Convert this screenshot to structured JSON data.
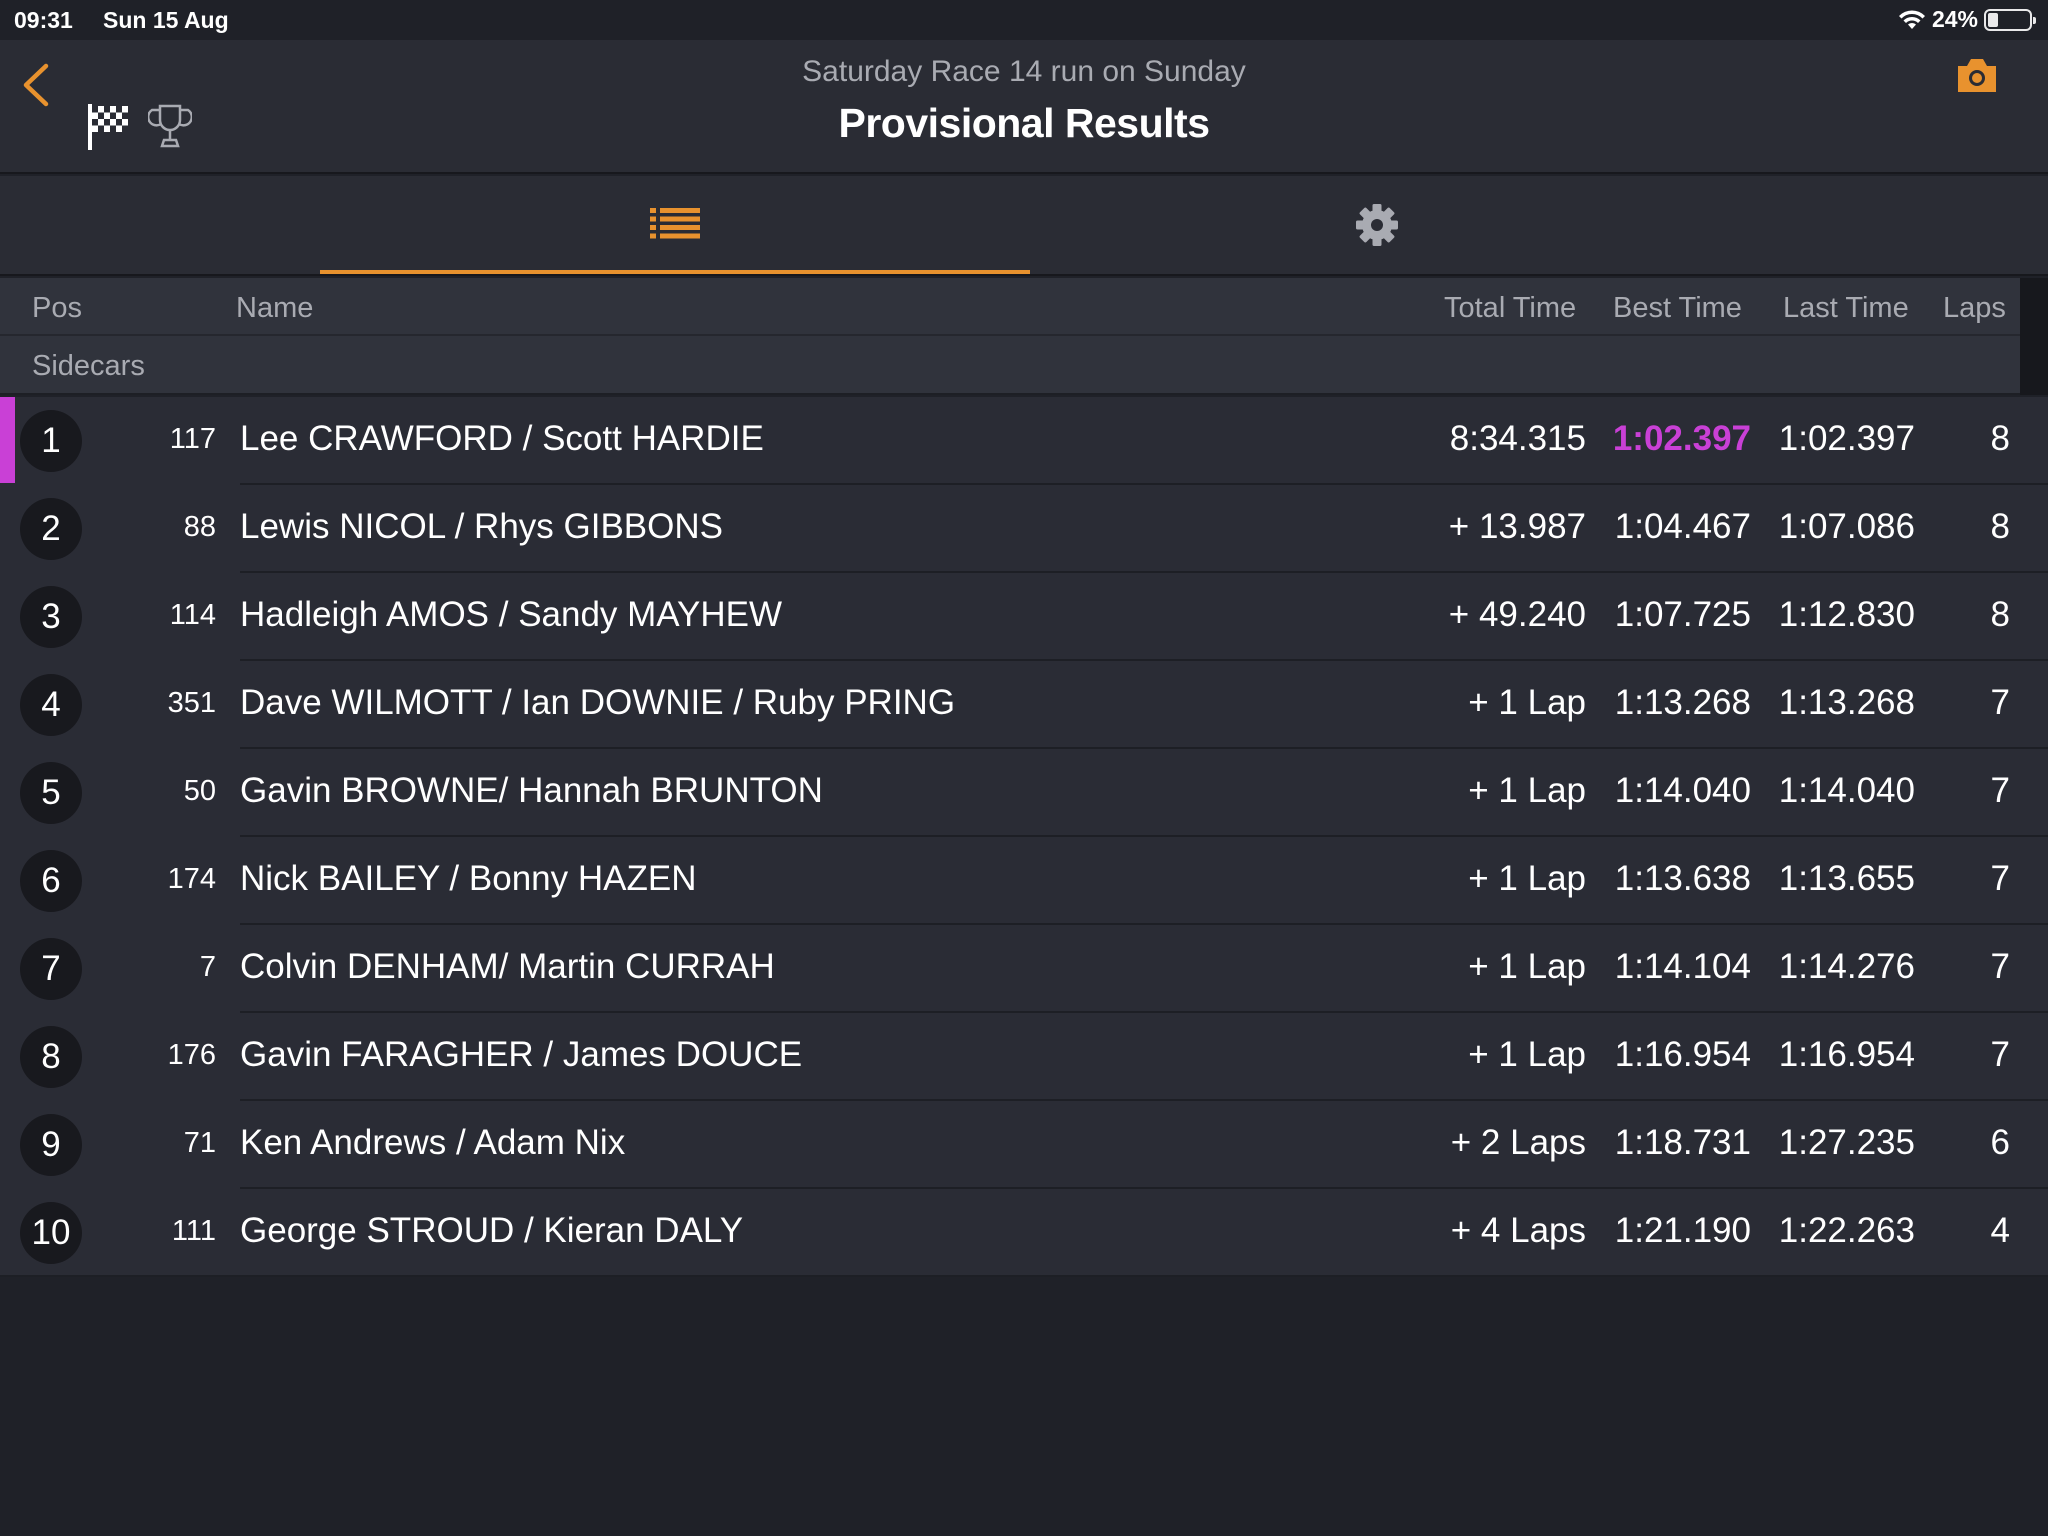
{
  "status_bar": {
    "time": "09:31",
    "date": "Sun 15 Aug",
    "battery": "24%"
  },
  "nav": {
    "subtitle": "Saturday Race 14 run on Sunday",
    "title": "Provisional Results",
    "icons": [
      "back-chevron-icon",
      "checkered-flag-icon",
      "trophy-icon",
      "camera-icon"
    ]
  },
  "tabs": [
    {
      "icon": "list-icon",
      "selected": true
    },
    {
      "icon": "gear-icon",
      "selected": false
    }
  ],
  "columns": {
    "pos": "Pos",
    "name": "Name",
    "total": "Total Time",
    "best": "Best Time",
    "last": "Last Time",
    "laps": "Laps"
  },
  "group": "Sidecars",
  "colors": {
    "accent": "#e8922e",
    "fastest": "#c940d6"
  },
  "results": [
    {
      "pos": "1",
      "number": "117",
      "name": "Lee CRAWFORD / Scott HARDIE",
      "total": "8:34.315",
      "best": "1:02.397",
      "last": "1:02.397",
      "laps": "8",
      "fastest": true
    },
    {
      "pos": "2",
      "number": "88",
      "name": "Lewis NICOL / Rhys GIBBONS",
      "total": "+ 13.987",
      "best": "1:04.467",
      "last": "1:07.086",
      "laps": "8"
    },
    {
      "pos": "3",
      "number": "114",
      "name": "Hadleigh AMOS / Sandy MAYHEW",
      "total": "+ 49.240",
      "best": "1:07.725",
      "last": "1:12.830",
      "laps": "8"
    },
    {
      "pos": "4",
      "number": "351",
      "name": "Dave WILMOTT / Ian DOWNIE / Ruby PRING",
      "total": "+ 1 Lap",
      "best": "1:13.268",
      "last": "1:13.268",
      "laps": "7"
    },
    {
      "pos": "5",
      "number": "50",
      "name": "Gavin BROWNE/ Hannah BRUNTON",
      "total": "+ 1 Lap",
      "best": "1:14.040",
      "last": "1:14.040",
      "laps": "7"
    },
    {
      "pos": "6",
      "number": "174",
      "name": "Nick BAILEY / Bonny HAZEN",
      "total": "+ 1 Lap",
      "best": "1:13.638",
      "last": "1:13.655",
      "laps": "7"
    },
    {
      "pos": "7",
      "number": "7",
      "name": "Colvin DENHAM/ Martin CURRAH",
      "total": "+ 1 Lap",
      "best": "1:14.104",
      "last": "1:14.276",
      "laps": "7"
    },
    {
      "pos": "8",
      "number": "176",
      "name": "Gavin FARAGHER / James DOUCE",
      "total": "+ 1 Lap",
      "best": "1:16.954",
      "last": "1:16.954",
      "laps": "7"
    },
    {
      "pos": "9",
      "number": "71",
      "name": "Ken Andrews / Adam Nix",
      "total": "+ 2 Laps",
      "best": "1:18.731",
      "last": "1:27.235",
      "laps": "6"
    },
    {
      "pos": "10",
      "number": "111",
      "name": "George STROUD / Kieran DALY",
      "total": "+ 4 Laps",
      "best": "1:21.190",
      "last": "1:22.263",
      "laps": "4"
    }
  ]
}
